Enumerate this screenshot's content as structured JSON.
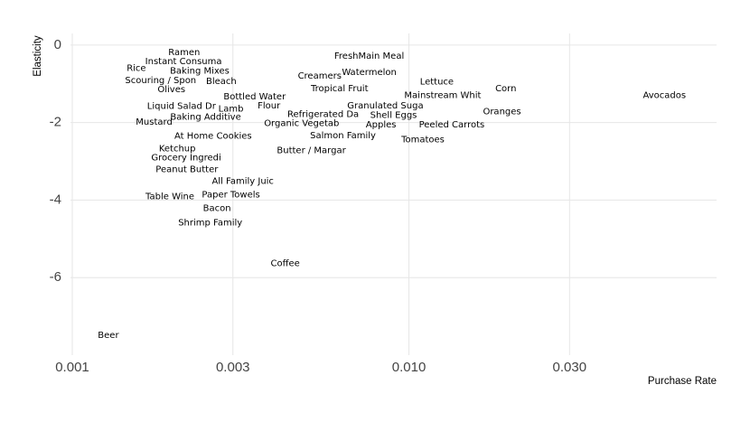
{
  "chart_data": {
    "type": "scatter",
    "x_label": "Purchase Rate",
    "y_label": "Elasticity",
    "log_x": true,
    "grid": true,
    "color": "#000000",
    "point_labels": [
      "Ramen",
      "Instant Consuma",
      "Rice",
      "Baking Mixes",
      "Scouring / Spon",
      "Bleach",
      "Olives",
      "FreshMain Meal",
      "Watermelon",
      "Creamers",
      "Tropical Fruit",
      "Lettuce",
      "Corn",
      "Mainstream Whit",
      "Avocados",
      "Bottled Water",
      "Flour",
      "Liquid Salad Dr",
      "Lamb",
      "Granulated Suga",
      "Oranges",
      "Refrigerated Da",
      "Shell Eggs",
      "Baking Additive",
      "Mustard",
      "Organic Vegetab",
      "Apples",
      "Peeled Carrots",
      "Salmon Family",
      "At Home Cookies",
      "Tomatoes",
      "Ketchup",
      "Butter / Margar",
      "Grocery Ingredi",
      "Peanut Butter",
      "All Family Juic",
      "Paper Towels",
      "Table Wine",
      "Bacon",
      "Shrimp Family",
      "Coffee",
      "Beer"
    ],
    "x": [
      0.00215,
      0.00214,
      0.00155,
      0.00239,
      0.00183,
      0.00277,
      0.00197,
      0.00762,
      0.00762,
      0.00543,
      0.00622,
      0.0121,
      0.0194,
      0.0126,
      0.0574,
      0.00348,
      0.00384,
      0.00211,
      0.00296,
      0.00851,
      0.0189,
      0.00556,
      0.009,
      0.00249,
      0.00175,
      0.0048,
      0.00826,
      0.0134,
      0.00637,
      0.00262,
      0.011,
      0.00205,
      0.00513,
      0.00218,
      0.00219,
      0.00321,
      0.00296,
      0.00195,
      0.00269,
      0.00257,
      0.00429,
      0.00128
    ],
    "values": [
      -0.19,
      -0.42,
      -0.6,
      -0.67,
      -0.91,
      -0.93,
      -1.14,
      -0.28,
      -0.7,
      -0.79,
      -1.12,
      -0.95,
      -1.12,
      -1.3,
      -1.3,
      -1.33,
      -1.56,
      -1.58,
      -1.65,
      -1.56,
      -1.72,
      -1.79,
      -1.81,
      -1.86,
      -1.98,
      -2.02,
      -2.05,
      -2.05,
      -2.33,
      -2.35,
      -2.44,
      -2.67,
      -2.72,
      -2.91,
      -3.21,
      -3.51,
      -3.86,
      -3.91,
      -4.21,
      -4.58,
      -5.63,
      -7.49
    ],
    "xlim": [
      0.001,
      0.082
    ],
    "ylim": [
      -8,
      0.3
    ],
    "xticks": [
      0.001,
      0.003,
      {
        "value": 0.01,
        "label": "0.010"
      },
      {
        "value": 0.03,
        "label": "0.030"
      }
    ],
    "yticks": [
      0,
      -2,
      -4,
      -6
    ]
  }
}
